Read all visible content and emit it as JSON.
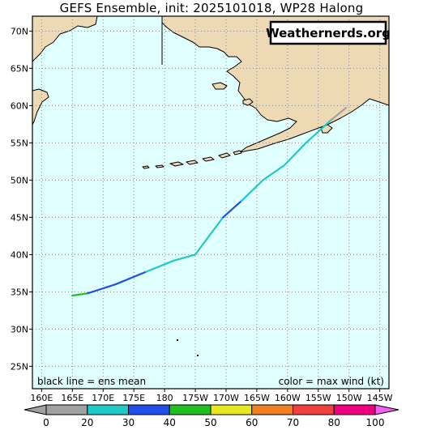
{
  "title": "GEFS Ensemble, init: 2025101018, WP28 Halong",
  "watermark": "Weathernerds.org",
  "notes": {
    "left": "black line = ens mean",
    "right": "color = max wind (kt)"
  },
  "lat_labels": [
    "70N",
    "65N",
    "60N",
    "55N",
    "50N",
    "45N",
    "40N",
    "35N",
    "30N",
    "25N"
  ],
  "lat_values": [
    70,
    65,
    60,
    55,
    50,
    45,
    40,
    35,
    30,
    25
  ],
  "lon_labels": [
    "160E",
    "165E",
    "170E",
    "175E",
    "180",
    "175W",
    "170W",
    "165W",
    "160W",
    "155W",
    "150W",
    "145W"
  ],
  "lon_values": [
    160,
    165,
    170,
    175,
    180,
    185,
    190,
    195,
    200,
    205,
    210,
    215
  ],
  "colorbar": {
    "labels": [
      "0",
      "20",
      "30",
      "40",
      "50",
      "60",
      "70",
      "80",
      "100"
    ],
    "colors": [
      "#a0a0a0",
      "#20c8c8",
      "#2050e8",
      "#20c020",
      "#e8e820",
      "#f08020",
      "#f04040",
      "#f00080",
      "#f060f0"
    ]
  },
  "colors": {
    "ocean": "#e0ffff",
    "land": "#eed9b5",
    "grid": "#888888"
  },
  "track": {
    "segments": [
      {
        "color": "#20c020",
        "points": [
          [
            165.0,
            34.5
          ],
          [
            167.5,
            34.8
          ]
        ]
      },
      {
        "color": "#2050e8",
        "points": [
          [
            167.5,
            34.8
          ],
          [
            172.0,
            36.0
          ],
          [
            177.0,
            37.7
          ]
        ]
      },
      {
        "color": "#20c8c8",
        "points": [
          [
            177.0,
            37.7
          ],
          [
            181.5,
            39.2
          ],
          [
            185.0,
            40.0
          ],
          [
            189.5,
            45.0
          ]
        ]
      },
      {
        "color": "#2050e8",
        "points": [
          [
            189.5,
            45.0
          ],
          [
            192.5,
            47.2
          ]
        ]
      },
      {
        "color": "#20c8c8",
        "points": [
          [
            192.5,
            47.2
          ],
          [
            196.0,
            50.0
          ],
          [
            199.5,
            52.0
          ],
          [
            203.0,
            55.0
          ],
          [
            207.0,
            58.0
          ]
        ]
      },
      {
        "color": "#a0a0a0",
        "points": [
          [
            207.0,
            58.0
          ],
          [
            209.5,
            59.7
          ]
        ]
      }
    ]
  }
}
